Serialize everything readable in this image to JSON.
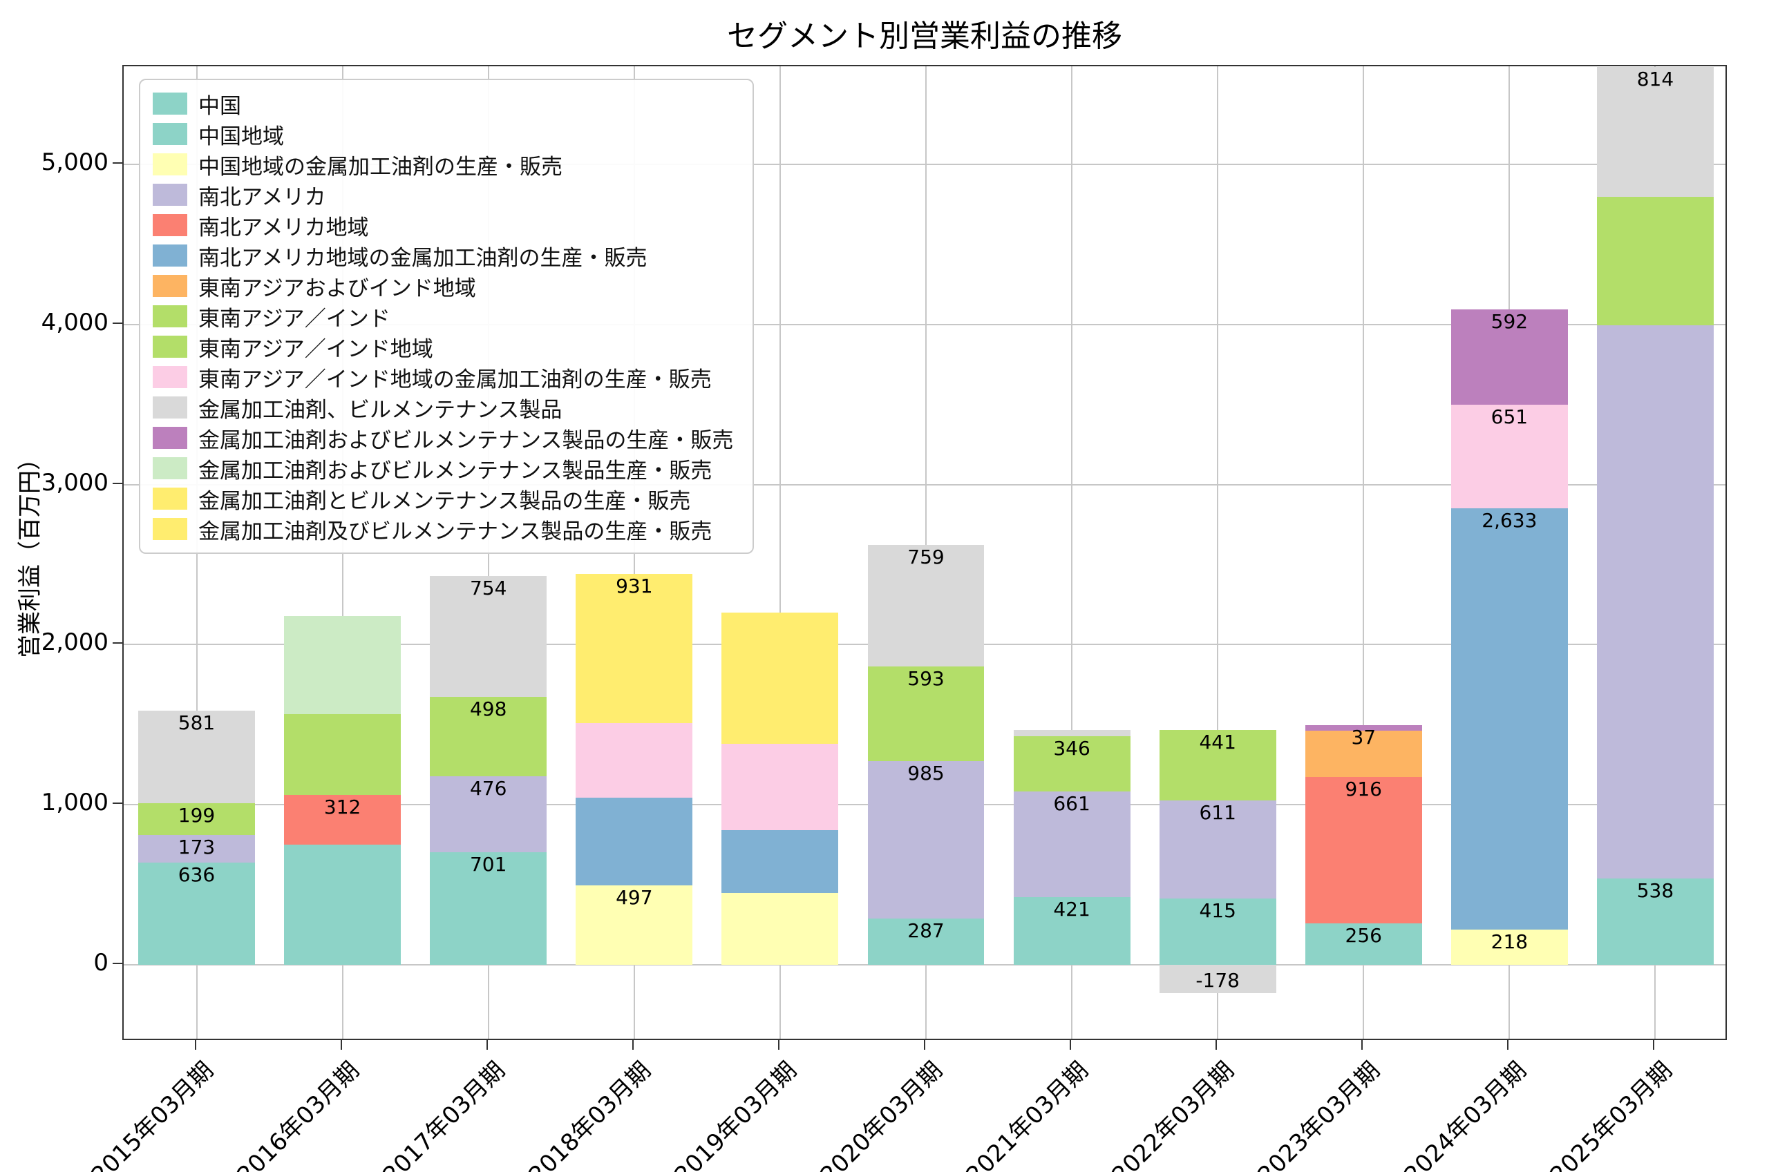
{
  "chart_data": {
    "type": "bar",
    "stacked": true,
    "title": "セグメント別営業利益の推移",
    "ylabel": "営業利益（百万円）",
    "xlabel": "",
    "ylim": [
      -480,
      5615
    ],
    "yticks": [
      0,
      1000,
      2000,
      3000,
      4000,
      5000
    ],
    "ytick_labels": [
      "0",
      "1,000",
      "2,000",
      "3,000",
      "4,000",
      "5,000"
    ],
    "grid": true,
    "legend_position": "upper-left",
    "categories": [
      "2015年03月期",
      "2016年03月期",
      "2017年03月期",
      "2018年03月期",
      "2019年03月期",
      "2020年03月期",
      "2021年03月期",
      "2022年03月期",
      "2023年03月期",
      "2024年03月期",
      "2025年03月期"
    ],
    "legend": [
      {
        "label": "中国",
        "color": "#8dd3c7"
      },
      {
        "label": "中国地域",
        "color": "#8dd3c7"
      },
      {
        "label": "中国地域の金属加工油剤の生産・販売",
        "color": "#ffffb3"
      },
      {
        "label": "南北アメリカ",
        "color": "#bebada"
      },
      {
        "label": "南北アメリカ地域",
        "color": "#fb8072"
      },
      {
        "label": "南北アメリカ地域の金属加工油剤の生産・販売",
        "color": "#80b1d3"
      },
      {
        "label": "東南アジアおよびインド地域",
        "color": "#fdb462"
      },
      {
        "label": "東南アジア／インド",
        "color": "#b3de69"
      },
      {
        "label": "東南アジア／インド地域",
        "color": "#b3de69"
      },
      {
        "label": "東南アジア／インド地域の金属加工油剤の生産・販売",
        "color": "#fccde5"
      },
      {
        "label": "金属加工油剤、ビルメンテナンス製品",
        "color": "#d9d9d9"
      },
      {
        "label": "金属加工油剤およびビルメンテナンス製品の生産・販売",
        "color": "#bc80bd"
      },
      {
        "label": "金属加工油剤およびビルメンテナンス製品生産・販売",
        "color": "#ccebc5"
      },
      {
        "label": "金属加工油剤とビルメンテナンス製品の生産・販売",
        "color": "#ffed6f"
      },
      {
        "label": "金属加工油剤及びビルメンテナンス製品の生産・販売",
        "color": "#ffed6f"
      }
    ],
    "bars": [
      {
        "category": "2015年03月期",
        "segments": [
          {
            "series": "中国",
            "color": "#8dd3c7",
            "value": 636,
            "label": "636"
          },
          {
            "series": "南北アメリカ",
            "color": "#bebada",
            "value": 173,
            "label": "173"
          },
          {
            "series": "東南アジア／インド",
            "color": "#b3de69",
            "value": 199,
            "label": "199"
          },
          {
            "series": "金属加工油剤、ビルメンテナンス製品",
            "color": "#d9d9d9",
            "value": 581,
            "label": "581"
          }
        ]
      },
      {
        "category": "2016年03月期",
        "segments": [
          {
            "series": "中国",
            "color": "#8dd3c7",
            "value": 750,
            "label": null,
            "approx": true
          },
          {
            "series": "南北アメリカ地域",
            "color": "#fb8072",
            "value": 312,
            "label": "312"
          },
          {
            "series": "東南アジア／インド地域",
            "color": "#b3de69",
            "value": 505,
            "label": null,
            "approx": true
          },
          {
            "series": "金属加工油剤およびビルメンテナンス製品生産・販売",
            "color": "#ccebc5",
            "value": 610,
            "label": null,
            "approx": true
          }
        ]
      },
      {
        "category": "2017年03月期",
        "segments": [
          {
            "series": "中国",
            "color": "#8dd3c7",
            "value": 701,
            "label": "701"
          },
          {
            "series": "南北アメリカ",
            "color": "#bebada",
            "value": 476,
            "label": "476"
          },
          {
            "series": "東南アジア／インド",
            "color": "#b3de69",
            "value": 498,
            "label": "498"
          },
          {
            "series": "金属加工油剤、ビルメンテナンス製品",
            "color": "#d9d9d9",
            "value": 754,
            "label": "754"
          }
        ]
      },
      {
        "category": "2018年03月期",
        "segments": [
          {
            "series": "中国地域の金属加工油剤の生産・販売",
            "color": "#ffffb3",
            "value": 497,
            "label": "497"
          },
          {
            "series": "南北アメリカ地域の金属加工油剤の生産・販売",
            "color": "#80b1d3",
            "value": 545,
            "label": null,
            "approx": true
          },
          {
            "series": "東南アジア／インド地域の金属加工油剤の生産・販売",
            "color": "#fccde5",
            "value": 470,
            "label": null,
            "approx": true
          },
          {
            "series": "金属加工油剤とビルメンテナンス製品の生産・販売",
            "color": "#ffed6f",
            "value": 931,
            "label": "931"
          }
        ]
      },
      {
        "category": "2019年03月期",
        "segments": [
          {
            "series": "中国地域の金属加工油剤の生産・販売",
            "color": "#ffffb3",
            "value": 450,
            "label": null,
            "approx": true
          },
          {
            "series": "南北アメリカ地域の金属加工油剤の生産・販売",
            "color": "#80b1d3",
            "value": 390,
            "label": null,
            "approx": true
          },
          {
            "series": "東南アジア／インド地域の金属加工油剤の生産・販売",
            "color": "#fccde5",
            "value": 540,
            "label": null,
            "approx": true
          },
          {
            "series": "金属加工油剤及びビルメンテナンス製品の生産・販売",
            "color": "#ffed6f",
            "value": 820,
            "label": null,
            "approx": true
          }
        ]
      },
      {
        "category": "2020年03月期",
        "segments": [
          {
            "series": "中国地域",
            "color": "#8dd3c7",
            "value": 287,
            "label": "287"
          },
          {
            "series": "南北アメリカ",
            "color": "#bebada",
            "value": 985,
            "label": "985"
          },
          {
            "series": "東南アジア／インド",
            "color": "#b3de69",
            "value": 593,
            "label": "593"
          },
          {
            "series": "金属加工油剤、ビルメンテナンス製品",
            "color": "#d9d9d9",
            "value": 759,
            "label": "759"
          }
        ]
      },
      {
        "category": "2021年03月期",
        "segments": [
          {
            "series": "中国地域",
            "color": "#8dd3c7",
            "value": 421,
            "label": "421"
          },
          {
            "series": "南北アメリカ",
            "color": "#bebada",
            "value": 661,
            "label": "661"
          },
          {
            "series": "東南アジア／インド",
            "color": "#b3de69",
            "value": 346,
            "label": "346"
          },
          {
            "series": "金属加工油剤、ビルメンテナンス製品",
            "color": "#d9d9d9",
            "value": 40,
            "label": null,
            "approx": true
          }
        ]
      },
      {
        "category": "2022年03月期",
        "segments": [
          {
            "series": "中国地域",
            "color": "#8dd3c7",
            "value": 415,
            "label": "415"
          },
          {
            "series": "南北アメリカ",
            "color": "#bebada",
            "value": 611,
            "label": "611"
          },
          {
            "series": "東南アジア／インド",
            "color": "#b3de69",
            "value": 441,
            "label": "441"
          },
          {
            "series": "金属加工油剤、ビルメンテナンス製品",
            "color": "#d9d9d9",
            "value": -178,
            "label": "-178"
          }
        ]
      },
      {
        "category": "2023年03月期",
        "segments": [
          {
            "series": "中国地域",
            "color": "#8dd3c7",
            "value": 256,
            "label": "256"
          },
          {
            "series": "南北アメリカ地域",
            "color": "#fb8072",
            "value": 916,
            "label": "916"
          },
          {
            "series": "東南アジアおよびインド地域",
            "color": "#fdb462",
            "value": 290,
            "label": null,
            "approx": true
          },
          {
            "series": "金属加工油剤およびビルメンテナンス製品の生産・販売",
            "color": "#bc80bd",
            "value": 37,
            "label": "37"
          }
        ]
      },
      {
        "category": "2024年03月期",
        "segments": [
          {
            "series": "中国地域の金属加工油剤の生産・販売",
            "color": "#ffffb3",
            "value": 218,
            "label": "218"
          },
          {
            "series": "南北アメリカ地域の金属加工油剤の生産・販売",
            "color": "#80b1d3",
            "value": 2633,
            "label": "2,633"
          },
          {
            "series": "東南アジア／インド地域の金属加工油剤の生産・販売",
            "color": "#fccde5",
            "value": 651,
            "label": "651"
          },
          {
            "series": "金属加工油剤およびビルメンテナンス製品の生産・販売",
            "color": "#bc80bd",
            "value": 592,
            "label": "592"
          }
        ]
      },
      {
        "category": "2025年03月期",
        "segments": [
          {
            "series": "中国地域",
            "color": "#8dd3c7",
            "value": 538,
            "label": "538"
          },
          {
            "series": "南北アメリカ",
            "color": "#bebada",
            "value": 3460,
            "label": null,
            "approx": true
          },
          {
            "series": "東南アジア／インド地域",
            "color": "#b3de69",
            "value": 800,
            "label": null,
            "approx": true
          },
          {
            "series": "金属加工油剤、ビルメンテナンス製品",
            "color": "#d9d9d9",
            "value": 814,
            "label": "814"
          }
        ]
      }
    ]
  }
}
